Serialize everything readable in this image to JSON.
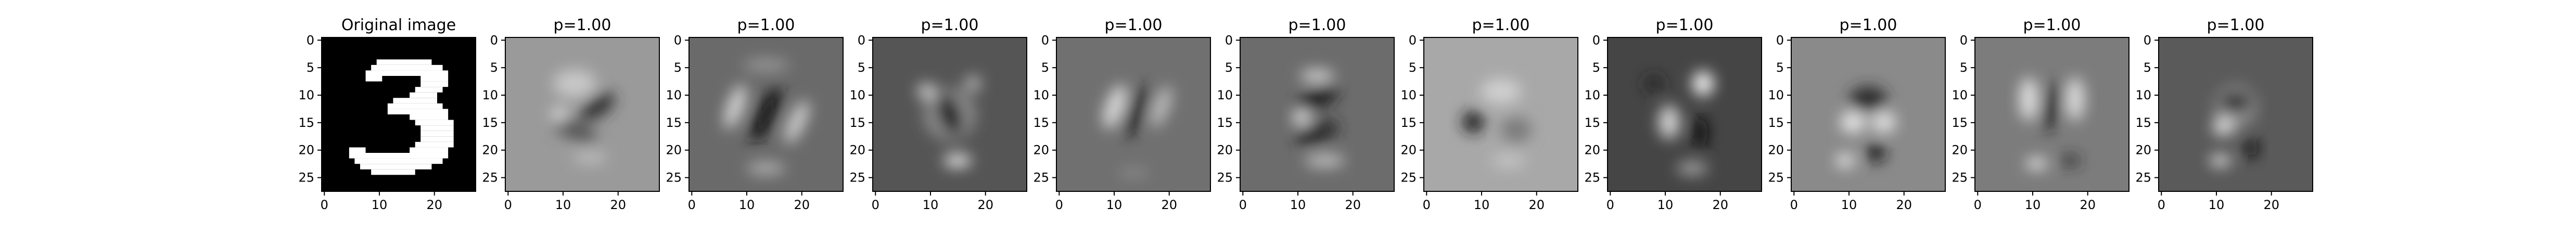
{
  "chart_data": [
    {
      "type": "heatmap",
      "title": "Original image",
      "image": "digit-3",
      "colormap": "gray",
      "xlim": [
        0,
        27
      ],
      "ylim": [
        27,
        0
      ],
      "xticks": [
        0,
        10,
        20
      ],
      "yticks": [
        0,
        5,
        10,
        15,
        20,
        25
      ]
    },
    {
      "type": "heatmap",
      "title": "p=1.00",
      "image": "reconstruction-1",
      "colormap": "gray",
      "xlim": [
        0,
        27
      ],
      "ylim": [
        27,
        0
      ],
      "xticks": [
        0,
        10,
        20
      ],
      "yticks": [
        0,
        5,
        10,
        15,
        20,
        25
      ]
    },
    {
      "type": "heatmap",
      "title": "p=1.00",
      "image": "reconstruction-2",
      "colormap": "gray",
      "xlim": [
        0,
        27
      ],
      "ylim": [
        27,
        0
      ],
      "xticks": [
        0,
        10,
        20
      ],
      "yticks": [
        0,
        5,
        10,
        15,
        20,
        25
      ]
    },
    {
      "type": "heatmap",
      "title": "p=1.00",
      "image": "reconstruction-3",
      "colormap": "gray",
      "xlim": [
        0,
        27
      ],
      "ylim": [
        27,
        0
      ],
      "xticks": [
        0,
        10,
        20
      ],
      "yticks": [
        0,
        5,
        10,
        15,
        20,
        25
      ]
    },
    {
      "type": "heatmap",
      "title": "p=1.00",
      "image": "reconstruction-4",
      "colormap": "gray",
      "xlim": [
        0,
        27
      ],
      "ylim": [
        27,
        0
      ],
      "xticks": [
        0,
        10,
        20
      ],
      "yticks": [
        0,
        5,
        10,
        15,
        20,
        25
      ]
    },
    {
      "type": "heatmap",
      "title": "p=1.00",
      "image": "reconstruction-5",
      "colormap": "gray",
      "xlim": [
        0,
        27
      ],
      "ylim": [
        27,
        0
      ],
      "xticks": [
        0,
        10,
        20
      ],
      "yticks": [
        0,
        5,
        10,
        15,
        20,
        25
      ]
    },
    {
      "type": "heatmap",
      "title": "p=1.00",
      "image": "reconstruction-6",
      "colormap": "gray",
      "xlim": [
        0,
        27
      ],
      "ylim": [
        27,
        0
      ],
      "xticks": [
        0,
        10,
        20
      ],
      "yticks": [
        0,
        5,
        10,
        15,
        20,
        25
      ]
    },
    {
      "type": "heatmap",
      "title": "p=1.00",
      "image": "reconstruction-7",
      "colormap": "gray",
      "xlim": [
        0,
        27
      ],
      "ylim": [
        27,
        0
      ],
      "xticks": [
        0,
        10,
        20
      ],
      "yticks": [
        0,
        5,
        10,
        15,
        20,
        25
      ]
    },
    {
      "type": "heatmap",
      "title": "p=1.00",
      "image": "reconstruction-8",
      "colormap": "gray",
      "xlim": [
        0,
        27
      ],
      "ylim": [
        27,
        0
      ],
      "xticks": [
        0,
        10,
        20
      ],
      "yticks": [
        0,
        5,
        10,
        15,
        20,
        25
      ]
    },
    {
      "type": "heatmap",
      "title": "p=1.00",
      "image": "reconstruction-9",
      "colormap": "gray",
      "xlim": [
        0,
        27
      ],
      "ylim": [
        27,
        0
      ],
      "xticks": [
        0,
        10,
        20
      ],
      "yticks": [
        0,
        5,
        10,
        15,
        20,
        25
      ]
    },
    {
      "type": "heatmap",
      "title": "p=1.00",
      "image": "reconstruction-10",
      "colormap": "gray",
      "xlim": [
        0,
        27
      ],
      "ylim": [
        27,
        0
      ],
      "xticks": [
        0,
        10,
        20
      ],
      "yticks": [
        0,
        5,
        10,
        15,
        20,
        25
      ]
    }
  ]
}
